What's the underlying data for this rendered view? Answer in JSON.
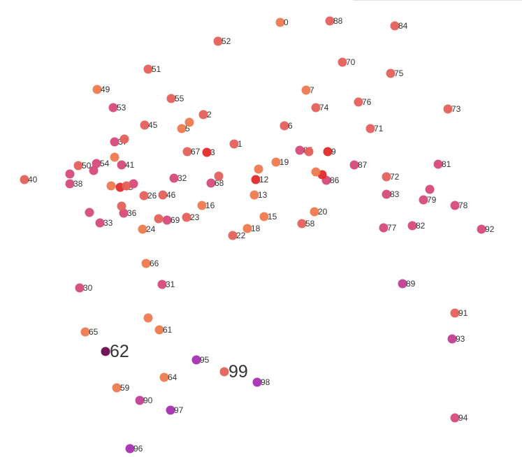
{
  "chart_data": {
    "type": "scatter",
    "title": "",
    "xlabel": "",
    "ylabel": "",
    "xlim": [
      0,
      747
    ],
    "ylim": [
      654,
      0
    ],
    "grid": false,
    "highlighted": [
      "62",
      "99"
    ],
    "colors": {
      "orange": "#ee7a4f",
      "coral": "#e5605a",
      "red": "#e02a2a",
      "pink": "#d64b79",
      "magenta": "#c13f92",
      "purple": "#a62fb3",
      "dark": "#6a0a4f",
      "label": "#333333"
    },
    "points": [
      {
        "label": "96",
        "x": 186,
        "y": 12,
        "c": "purple"
      },
      {
        "label": "97",
        "x": 244,
        "y": 67,
        "c": "purple"
      },
      {
        "label": "90",
        "x": 200,
        "y": 81,
        "c": "magenta"
      },
      {
        "label": "59",
        "x": 167,
        "y": 99,
        "c": "orange"
      },
      {
        "label": "64",
        "x": 235,
        "y": 114,
        "c": "orange"
      },
      {
        "label": "98",
        "x": 368,
        "y": 107,
        "c": "purple"
      },
      {
        "label": "99",
        "x": 321,
        "y": 122,
        "c": "coral"
      },
      {
        "label": "95",
        "x": 281,
        "y": 139,
        "c": "purple"
      },
      {
        "label": "62",
        "x": 151,
        "y": 151,
        "c": "dark"
      },
      {
        "label": "65",
        "x": 122,
        "y": 179,
        "c": "orange"
      },
      {
        "label": "61",
        "x": 228,
        "y": 182,
        "c": "orange"
      },
      {
        "label": "",
        "x": 212,
        "y": 199,
        "c": "orange"
      },
      {
        "label": "94",
        "x": 651,
        "y": 56,
        "c": "pink"
      },
      {
        "label": "93",
        "x": 647,
        "y": 169,
        "c": "magenta"
      },
      {
        "label": "91",
        "x": 651,
        "y": 206,
        "c": "coral"
      },
      {
        "label": "89",
        "x": 576,
        "y": 248,
        "c": "magenta"
      },
      {
        "label": "30",
        "x": 114,
        "y": 242,
        "c": "pink"
      },
      {
        "label": "31",
        "x": 232,
        "y": 247,
        "c": "pink"
      },
      {
        "label": "66",
        "x": 209,
        "y": 277,
        "c": "orange"
      },
      {
        "label": "22",
        "x": 333,
        "y": 317,
        "c": "coral"
      },
      {
        "label": "18",
        "x": 354,
        "y": 327,
        "c": "orange"
      },
      {
        "label": "24",
        "x": 204,
        "y": 326,
        "c": "orange"
      },
      {
        "label": "33",
        "x": 143,
        "y": 335,
        "c": "pink"
      },
      {
        "label": "69",
        "x": 239,
        "y": 339,
        "c": "pink"
      },
      {
        "label": "",
        "x": 227,
        "y": 341,
        "c": "coral"
      },
      {
        "label": "23",
        "x": 267,
        "y": 343,
        "c": "coral"
      },
      {
        "label": "15",
        "x": 378,
        "y": 344,
        "c": "orange"
      },
      {
        "label": "58",
        "x": 432,
        "y": 334,
        "c": "coral"
      },
      {
        "label": "20",
        "x": 450,
        "y": 351,
        "c": "orange"
      },
      {
        "label": "36",
        "x": 177,
        "y": 349,
        "c": "pink"
      },
      {
        "label": "",
        "x": 128,
        "y": 350,
        "c": "pink"
      },
      {
        "label": "",
        "x": 174,
        "y": 359,
        "c": "coral"
      },
      {
        "label": "16",
        "x": 289,
        "y": 360,
        "c": "orange"
      },
      {
        "label": "77",
        "x": 549,
        "y": 328,
        "c": "pink"
      },
      {
        "label": "82",
        "x": 590,
        "y": 331,
        "c": "pink"
      },
      {
        "label": "92",
        "x": 689,
        "y": 326,
        "c": "pink"
      },
      {
        "label": "78",
        "x": 651,
        "y": 360,
        "c": "pink"
      },
      {
        "label": "79",
        "x": 606,
        "y": 368,
        "c": "pink"
      },
      {
        "label": "",
        "x": 615,
        "y": 383,
        "c": "pink"
      },
      {
        "label": "83",
        "x": 553,
        "y": 376,
        "c": "pink"
      },
      {
        "label": "26",
        "x": 206,
        "y": 374,
        "c": "coral"
      },
      {
        "label": "46",
        "x": 233,
        "y": 375,
        "c": "coral"
      },
      {
        "label": "13",
        "x": 364,
        "y": 375,
        "c": "orange"
      },
      {
        "label": "35",
        "x": 172,
        "y": 386,
        "c": "red"
      },
      {
        "label": "",
        "x": 159,
        "y": 388,
        "c": "orange"
      },
      {
        "label": "",
        "x": 191,
        "y": 391,
        "c": "pink"
      },
      {
        "label": "",
        "x": 181,
        "y": 388,
        "c": "coral"
      },
      {
        "label": "68",
        "x": 302,
        "y": 392,
        "c": "pink"
      },
      {
        "label": "",
        "x": 313,
        "y": 402,
        "c": "coral"
      },
      {
        "label": "86",
        "x": 467,
        "y": 396,
        "c": "pink"
      },
      {
        "label": "",
        "x": 461,
        "y": 404,
        "c": "red"
      },
      {
        "label": "",
        "x": 452,
        "y": 408,
        "c": "orange"
      },
      {
        "label": "12",
        "x": 366,
        "y": 397,
        "c": "red"
      },
      {
        "label": "",
        "x": 370,
        "y": 412,
        "c": "orange"
      },
      {
        "label": "38",
        "x": 100,
        "y": 391,
        "c": "pink"
      },
      {
        "label": "40",
        "x": 35,
        "y": 397,
        "c": "coral"
      },
      {
        "label": "",
        "x": 100,
        "y": 405,
        "c": "pink"
      },
      {
        "label": "32",
        "x": 249,
        "y": 399,
        "c": "pink"
      },
      {
        "label": "72",
        "x": 553,
        "y": 401,
        "c": "coral"
      },
      {
        "label": "81",
        "x": 627,
        "y": 419,
        "c": "pink"
      },
      {
        "label": "87",
        "x": 507,
        "y": 418,
        "c": "pink"
      },
      {
        "label": "19",
        "x": 395,
        "y": 422,
        "c": "orange"
      },
      {
        "label": "50",
        "x": 112,
        "y": 417,
        "c": "coral"
      },
      {
        "label": "",
        "x": 134,
        "y": 410,
        "c": "pink"
      },
      {
        "label": "54",
        "x": 138,
        "y": 420,
        "c": "pink"
      },
      {
        "label": "41",
        "x": 174,
        "y": 418,
        "c": "pink"
      },
      {
        "label": "",
        "x": 164,
        "y": 429,
        "c": "orange"
      },
      {
        "label": "67",
        "x": 268,
        "y": 437,
        "c": "coral"
      },
      {
        "label": "3",
        "x": 296,
        "y": 436,
        "c": "red"
      },
      {
        "label": "85",
        "x": 429,
        "y": 439,
        "c": "pink"
      },
      {
        "label": "",
        "x": 442,
        "y": 437,
        "c": "coral"
      },
      {
        "label": "9",
        "x": 469,
        "y": 437,
        "c": "red"
      },
      {
        "label": "1",
        "x": 335,
        "y": 448,
        "c": "coral"
      },
      {
        "label": "37",
        "x": 164,
        "y": 451,
        "c": "pink"
      },
      {
        "label": "",
        "x": 178,
        "y": 455,
        "c": "coral"
      },
      {
        "label": "5",
        "x": 260,
        "y": 470,
        "c": "orange"
      },
      {
        "label": "",
        "x": 271,
        "y": 479,
        "c": "orange"
      },
      {
        "label": "45",
        "x": 207,
        "y": 475,
        "c": "coral"
      },
      {
        "label": "6",
        "x": 407,
        "y": 474,
        "c": "coral"
      },
      {
        "label": "71",
        "x": 530,
        "y": 470,
        "c": "coral"
      },
      {
        "label": "2",
        "x": 291,
        "y": 490,
        "c": "coral"
      },
      {
        "label": "53",
        "x": 162,
        "y": 500,
        "c": "pink"
      },
      {
        "label": "74",
        "x": 452,
        "y": 500,
        "c": "coral"
      },
      {
        "label": "73",
        "x": 641,
        "y": 498,
        "c": "coral"
      },
      {
        "label": "76",
        "x": 513,
        "y": 508,
        "c": "coral"
      },
      {
        "label": "55",
        "x": 245,
        "y": 513,
        "c": "coral"
      },
      {
        "label": "49",
        "x": 139,
        "y": 526,
        "c": "orange"
      },
      {
        "label": "7",
        "x": 438,
        "y": 525,
        "c": "orange"
      },
      {
        "label": "51",
        "x": 212,
        "y": 555,
        "c": "coral"
      },
      {
        "label": "75",
        "x": 559,
        "y": 549,
        "c": "coral"
      },
      {
        "label": "70",
        "x": 490,
        "y": 565,
        "c": "coral"
      },
      {
        "label": "52",
        "x": 312,
        "y": 595,
        "c": "coral"
      },
      {
        "label": "0",
        "x": 401,
        "y": 622,
        "c": "orange"
      },
      {
        "label": "88",
        "x": 472,
        "y": 624,
        "c": "coral"
      },
      {
        "label": "84",
        "x": 565,
        "y": 617,
        "c": "coral"
      }
    ]
  }
}
